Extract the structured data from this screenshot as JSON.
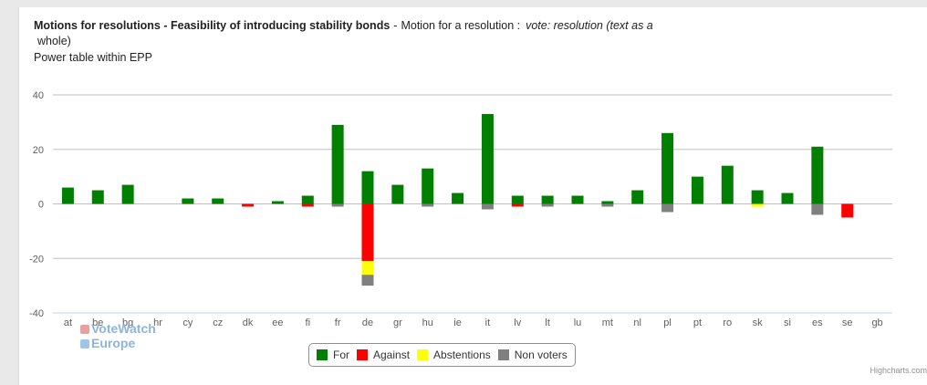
{
  "header": {
    "title_bold": "Motions for resolutions - Feasibility of introducing stability bonds",
    "title_sep": "-",
    "title_mid": "Motion for a resolution :",
    "title_italic": "vote: resolution (text as a",
    "title_cont": "whole)",
    "subtitle": "Power table within EPP"
  },
  "logo": {
    "line1": "VoteWatch",
    "line2": "Europe"
  },
  "credits": "Highcharts.com",
  "colors": {
    "for": "#007f00",
    "against": "#ff0000",
    "abstentions": "#ffff00",
    "non_voters": "#808080",
    "grid": "#c0c0c0"
  },
  "chart_data": {
    "type": "bar",
    "stacked": true,
    "title": "Motions for resolutions - Feasibility of introducing stability bonds",
    "subtitle": "Power table within EPP",
    "categories": [
      "at",
      "be",
      "bg",
      "hr",
      "cy",
      "cz",
      "dk",
      "ee",
      "fi",
      "fr",
      "de",
      "gr",
      "hu",
      "ie",
      "it",
      "lv",
      "lt",
      "lu",
      "mt",
      "nl",
      "pl",
      "pt",
      "ro",
      "sk",
      "si",
      "es",
      "se",
      "gb"
    ],
    "y_ticks": [
      40,
      20,
      0,
      -20,
      -40
    ],
    "ylim": [
      -40,
      40
    ],
    "grid": true,
    "legend_position": "bottom-center",
    "series": [
      {
        "name": "For",
        "color": "#007f00",
        "values": [
          6,
          5,
          7,
          0,
          2,
          2,
          0,
          1,
          3,
          29,
          12,
          7,
          13,
          4,
          33,
          3,
          3,
          3,
          1,
          5,
          26,
          10,
          14,
          5,
          4,
          21,
          0,
          0
        ]
      },
      {
        "name": "Against",
        "color": "#ff0000",
        "values": [
          0,
          0,
          0,
          0,
          0,
          0,
          1,
          0,
          1,
          0,
          21,
          0,
          0,
          0,
          0,
          1,
          0,
          0,
          0,
          0,
          0,
          0,
          0,
          0,
          0,
          0,
          5,
          0
        ]
      },
      {
        "name": "Abstentions",
        "color": "#ffff00",
        "values": [
          0,
          0,
          0,
          0,
          0,
          0,
          0,
          0,
          0,
          0,
          5,
          0,
          0,
          0,
          0,
          0,
          0,
          0,
          0,
          0,
          0,
          0,
          0,
          1,
          0,
          0,
          0,
          0
        ]
      },
      {
        "name": "Non voters",
        "color": "#808080",
        "values": [
          0,
          0,
          0,
          0,
          0,
          0,
          0,
          0,
          0,
          1,
          4,
          0,
          1,
          0,
          2,
          0,
          1,
          0,
          1,
          0,
          3,
          0,
          0,
          0,
          0,
          4,
          0,
          0
        ]
      }
    ]
  }
}
